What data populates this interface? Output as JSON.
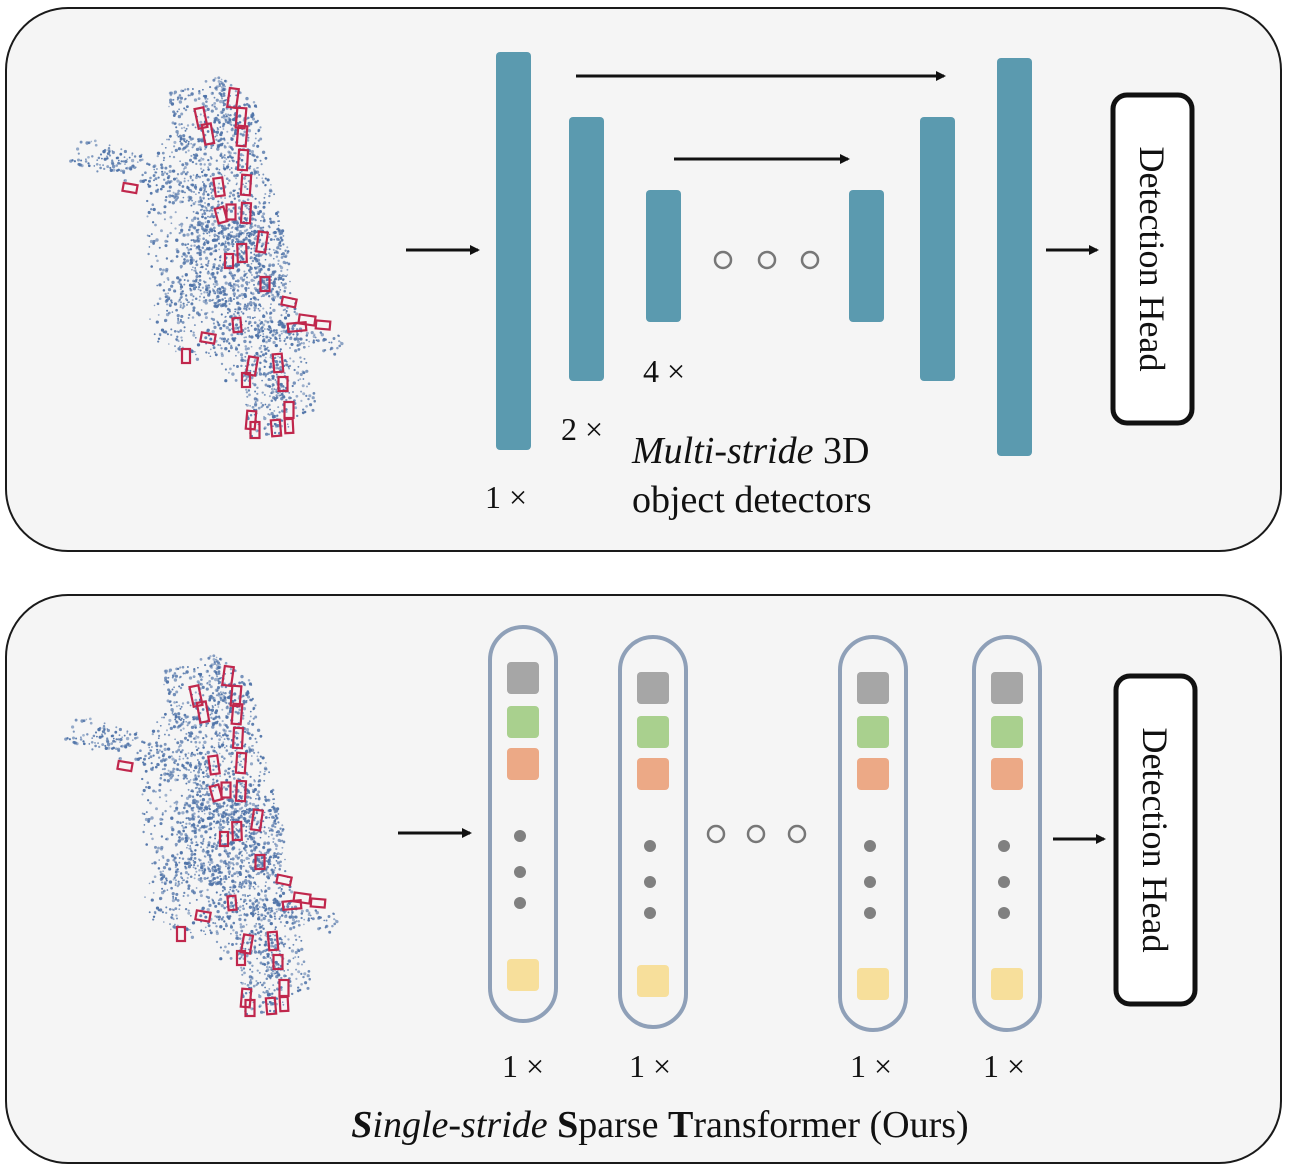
{
  "colors": {
    "panel_fill": "#f5f5f5",
    "panel_stroke": "#1a1a1a",
    "bar_fill": "#5b9aaf",
    "capsule_stroke": "#8fa0b8",
    "token_gray": "#a6a6a6",
    "token_green": "#a9d08e",
    "token_orange": "#eca986",
    "token_yellow": "#f7df9b",
    "dot_gray": "#808080",
    "point_cloud": "#4f73a8",
    "bbox_red": "#c0274c"
  },
  "top_panel": {
    "bar_stride_labels": [
      "1 ×",
      "2 ×",
      "4 ×"
    ],
    "caption": {
      "line1_italic": "Multi-stride",
      "line1_rest": " 3D",
      "line2": "object detectors"
    },
    "head_label": "Detection Head",
    "ellipsis_icon": "three-hollow-circles"
  },
  "bottom_panel": {
    "capsule_labels": [
      "1 ×",
      "1 ×",
      "1 ×",
      "1 ×"
    ],
    "caption": {
      "s1": "S",
      "italic_rest": "ingle-stride",
      "s2": "S",
      "parse": "parse ",
      "t": "T",
      "rest": "ransformer (Ours)"
    },
    "head_label": "Detection Head",
    "ellipsis_icon": "three-hollow-circles"
  }
}
